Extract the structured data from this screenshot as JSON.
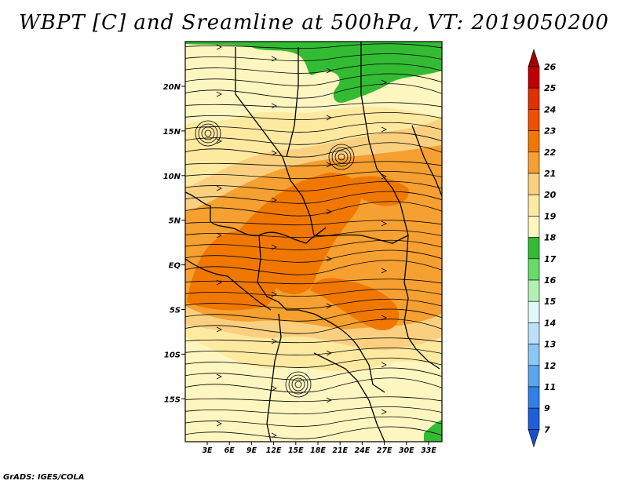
{
  "title": "WBPT [C] and Sreamline at 500hPa, VT: 2019050200",
  "footer": "GrADS: IGES/COLA",
  "map": {
    "lat_labels": [
      "20N",
      "15N",
      "10N",
      "5N",
      "EQ",
      "5S",
      "10S",
      "15S"
    ],
    "lon_labels": [
      "3E",
      "6E",
      "9E",
      "12E",
      "15E",
      "18E",
      "21E",
      "24E",
      "27E",
      "30E",
      "33E"
    ]
  },
  "colorbar": {
    "labels": [
      "26",
      "25",
      "24",
      "23",
      "22",
      "21",
      "20",
      "19",
      "18",
      "17",
      "16",
      "15",
      "14",
      "13",
      "12",
      "11",
      "9",
      "7"
    ],
    "colors": [
      "#a50000",
      "#c00000",
      "#e03000",
      "#f05000",
      "#f07800",
      "#f5a030",
      "#fad080",
      "#fde9a0",
      "#fdf6c0",
      "#33bb33",
      "#66dd66",
      "#b3f0b3",
      "#e0f8f8",
      "#bde0fa",
      "#8cc6f5",
      "#5aa5ee",
      "#3280e6",
      "#1f5fdb",
      "#1a4fcc"
    ]
  },
  "field_colors": {
    "c18": "#fdf6c0",
    "c19": "#fde9a0",
    "c20": "#fad080",
    "c21": "#f5a030",
    "c22": "#f07800",
    "c17": "#33bb33"
  }
}
